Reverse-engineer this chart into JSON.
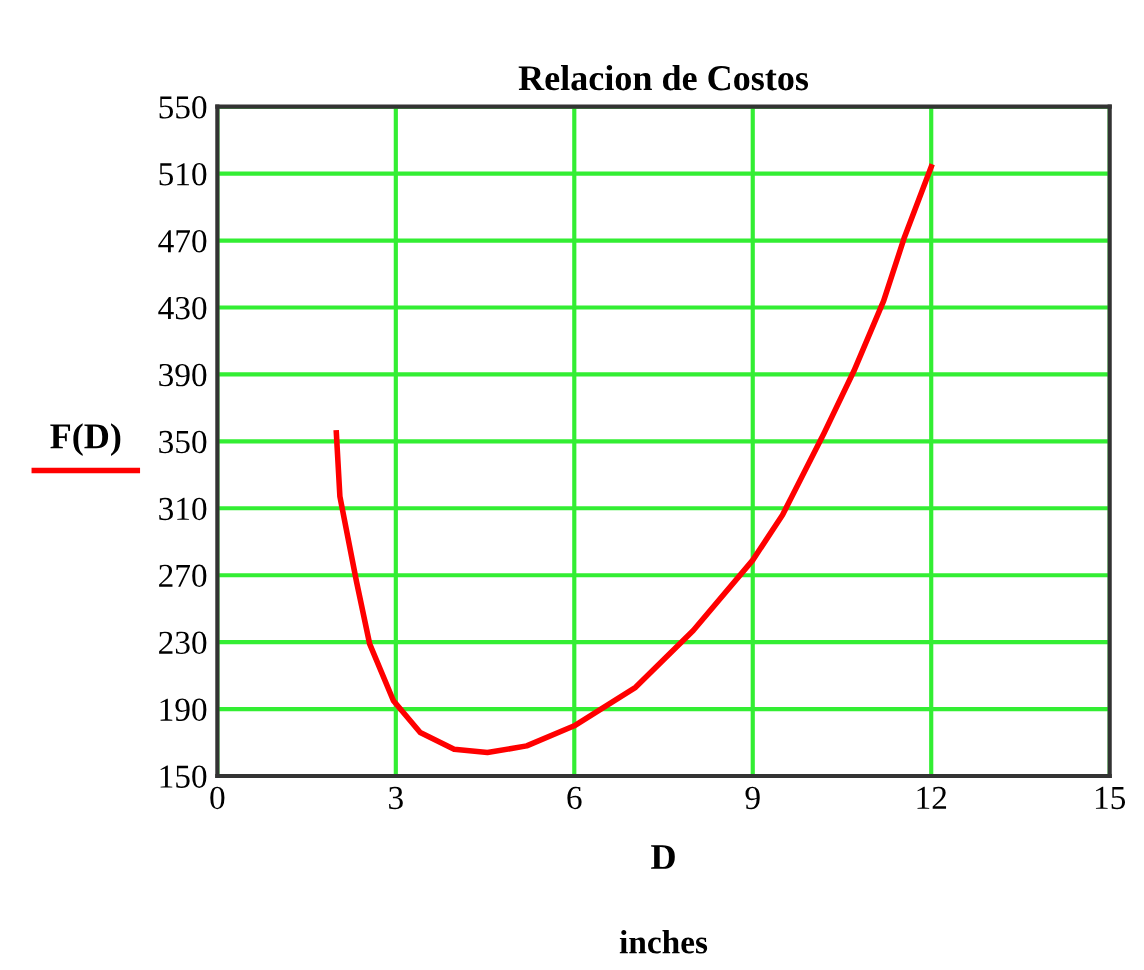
{
  "chart_data": {
    "type": "line",
    "title": "Relacion de Costos",
    "xlabel": "D",
    "annotations": [
      "inches"
    ],
    "x": [
      2.0,
      2.06,
      2.34,
      2.56,
      2.96,
      3.41,
      3.98,
      4.54,
      5.2,
      6.0,
      7.03,
      8.0,
      9.0,
      9.5,
      10.2,
      10.7,
      11.2,
      11.55,
      12.0
    ],
    "series": [
      {
        "name": "F(D)",
        "color": "#ff0000",
        "values": [
          355,
          317,
          266,
          229,
          195,
          176,
          166,
          164,
          168,
          180,
          203,
          237,
          279,
          306,
          355,
          392,
          434,
          472,
          514
        ]
      }
    ],
    "xlim": [
      0,
      15
    ],
    "xticks": [
      0,
      3,
      6,
      9,
      12,
      15
    ],
    "ylim": [
      150,
      550
    ],
    "yticks": [
      150,
      190,
      230,
      270,
      310,
      350,
      390,
      430,
      470,
      510,
      550
    ],
    "grid": true,
    "legend": "left",
    "line_style": "solid",
    "marker": "none"
  }
}
